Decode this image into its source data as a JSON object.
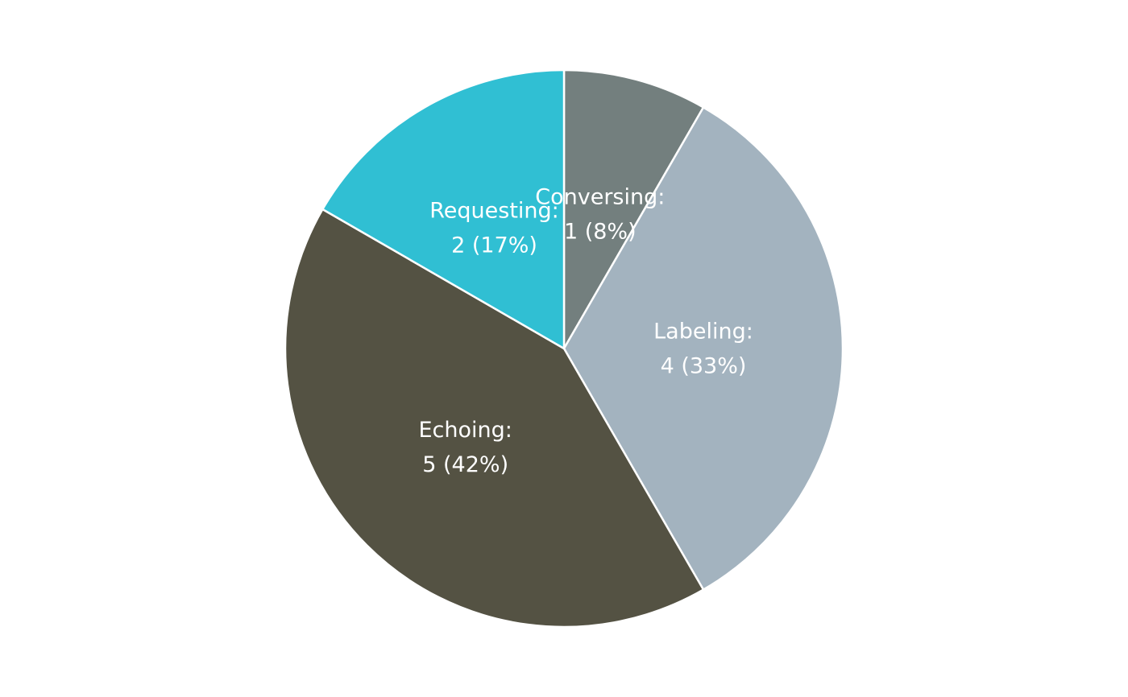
{
  "chart_data": {
    "type": "pie",
    "start_angle": "12 o'clock",
    "direction": "clockwise",
    "slices": [
      {
        "label": "Conversing:",
        "value_text": "1 (8%)",
        "value": 1,
        "percent": 8,
        "color": "#737f7e"
      },
      {
        "label": "Labeling:",
        "value_text": "4 (33%)",
        "value": 4,
        "percent": 33,
        "color": "#a3b3bf"
      },
      {
        "label": "Echoing:",
        "value_text": "5 (42%)",
        "value": 5,
        "percent": 42,
        "color": "#545243"
      },
      {
        "label": "Requesting:",
        "value_text": "2 (17%)",
        "value": 2,
        "percent": 17,
        "color": "#30bfd3"
      }
    ]
  }
}
